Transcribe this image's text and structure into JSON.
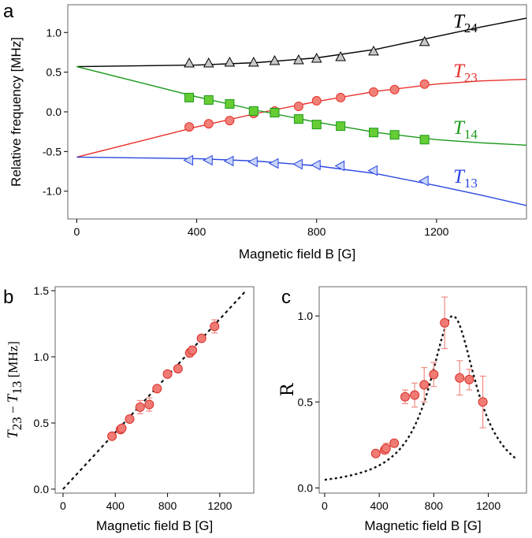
{
  "chart_data": [
    {
      "panel": "a",
      "type": "line",
      "xlabel": "Magnetic field B [G]",
      "ylabel": "Relative frequency [MHz]",
      "xlim": [
        -30,
        1500
      ],
      "ylim": [
        -1.35,
        1.35
      ],
      "xticks": [
        "0",
        "400",
        "800",
        "1200"
      ],
      "yticks": [
        "1.0",
        "0.5",
        "0.0",
        "-0.5",
        "-1.0"
      ],
      "series": [
        {
          "name": "T24",
          "label_main": "T",
          "label_sub": "24",
          "color": "#000000",
          "marker": "triangle-up",
          "marker_fill": "#c8c8c8",
          "line": [
            [
              0,
              0.57
            ],
            [
              200,
              0.58
            ],
            [
              400,
              0.59
            ],
            [
              600,
              0.62
            ],
            [
              800,
              0.68
            ],
            [
              1000,
              0.79
            ],
            [
              1200,
              0.95
            ],
            [
              1350,
              1.07
            ],
            [
              1500,
              1.18
            ]
          ],
          "points": [
            [
              375,
              0.61
            ],
            [
              440,
              0.61
            ],
            [
              510,
              0.62
            ],
            [
              590,
              0.62
            ],
            [
              660,
              0.64
            ],
            [
              740,
              0.65
            ],
            [
              800,
              0.67
            ],
            [
              880,
              0.69
            ],
            [
              990,
              0.76
            ],
            [
              1160,
              0.88
            ]
          ]
        },
        {
          "name": "T23",
          "label_main": "T",
          "label_sub": "23",
          "color": "#e8312b",
          "marker": "circle",
          "marker_fill": "#f08078",
          "line": [
            [
              0,
              -0.57
            ],
            [
              200,
              -0.38
            ],
            [
              400,
              -0.19
            ],
            [
              600,
              -0.02
            ],
            [
              800,
              0.13
            ],
            [
              1000,
              0.26
            ],
            [
              1200,
              0.35
            ],
            [
              1350,
              0.39
            ],
            [
              1500,
              0.41
            ]
          ],
          "points": [
            [
              375,
              -0.19
            ],
            [
              440,
              -0.15
            ],
            [
              510,
              -0.11
            ],
            [
              590,
              -0.02
            ],
            [
              660,
              0.01
            ],
            [
              740,
              0.07
            ],
            [
              800,
              0.14
            ],
            [
              880,
              0.18
            ],
            [
              990,
              0.25
            ],
            [
              1060,
              0.28
            ],
            [
              1160,
              0.35
            ]
          ]
        },
        {
          "name": "T14",
          "label_main": "T",
          "label_sub": "14",
          "color": "#1a9a1a",
          "marker": "square",
          "marker_fill": "#66cc33",
          "line": [
            [
              0,
              0.57
            ],
            [
              200,
              0.38
            ],
            [
              400,
              0.19
            ],
            [
              600,
              0.02
            ],
            [
              800,
              -0.13
            ],
            [
              1000,
              -0.26
            ],
            [
              1200,
              -0.35
            ],
            [
              1350,
              -0.39
            ],
            [
              1500,
              -0.42
            ]
          ],
          "points": [
            [
              375,
              0.18
            ],
            [
              440,
              0.15
            ],
            [
              510,
              0.1
            ],
            [
              590,
              0.01
            ],
            [
              660,
              -0.01
            ],
            [
              740,
              -0.09
            ],
            [
              800,
              -0.16
            ],
            [
              880,
              -0.18
            ],
            [
              990,
              -0.26
            ],
            [
              1060,
              -0.29
            ],
            [
              1160,
              -0.35
            ]
          ]
        },
        {
          "name": "T13",
          "label_main": "T",
          "label_sub": "13",
          "color": "#2b47e0",
          "marker": "triangle-left",
          "marker_fill": "#c8d4f8",
          "line": [
            [
              0,
              -0.57
            ],
            [
              200,
              -0.58
            ],
            [
              400,
              -0.59
            ],
            [
              600,
              -0.62
            ],
            [
              800,
              -0.68
            ],
            [
              1000,
              -0.78
            ],
            [
              1200,
              -0.93
            ],
            [
              1350,
              -1.05
            ],
            [
              1500,
              -1.18
            ]
          ],
          "points": [
            [
              375,
              -0.61
            ],
            [
              440,
              -0.61
            ],
            [
              510,
              -0.62
            ],
            [
              590,
              -0.63
            ],
            [
              660,
              -0.65
            ],
            [
              740,
              -0.66
            ],
            [
              800,
              -0.67
            ],
            [
              880,
              -0.68
            ],
            [
              990,
              -0.74
            ],
            [
              1160,
              -0.87
            ]
          ]
        }
      ]
    },
    {
      "panel": "b",
      "type": "scatter",
      "xlabel": "Magnetic field B [G]",
      "ylabel_main": "T",
      "ylabel_sub1": "23",
      "ylabel_mid": " − ",
      "ylabel_sub2": "13",
      "ylabel_unit": " [MHz]",
      "xlim": [
        -60,
        1460
      ],
      "ylim": [
        -0.03,
        1.53
      ],
      "xticks": [
        "0",
        "400",
        "800",
        "1200"
      ],
      "yticks": [
        "0.0",
        "0.5",
        "1.0",
        "1.5"
      ],
      "fit": [
        [
          0,
          0.0
        ],
        [
          1400,
          1.5
        ]
      ],
      "points": [
        [
          375,
          0.4,
          0.02
        ],
        [
          440,
          0.45,
          0.02
        ],
        [
          450,
          0.46,
          0.02
        ],
        [
          510,
          0.53,
          0.02
        ],
        [
          590,
          0.62,
          0.05
        ],
        [
          660,
          0.64,
          0.05
        ],
        [
          720,
          0.76,
          0.02
        ],
        [
          800,
          0.87,
          0.02
        ],
        [
          880,
          0.91,
          0.02
        ],
        [
          970,
          1.03,
          0.03
        ],
        [
          990,
          1.05,
          0.03
        ],
        [
          1060,
          1.14,
          0.02
        ],
        [
          1160,
          1.23,
          0.05
        ]
      ]
    },
    {
      "panel": "c",
      "type": "scatter",
      "xlabel": "Magnetic field B [G]",
      "ylabel": "R",
      "xlim": [
        -40,
        1480
      ],
      "ylim": [
        -0.03,
        1.17
      ],
      "xticks": [
        "0",
        "400",
        "800",
        "1200"
      ],
      "yticks": [
        "0.0",
        "0.5",
        "1.0"
      ],
      "fit_model": "lorentzian",
      "fit_center": 940,
      "fit_halfwidth": 210,
      "points": [
        [
          375,
          0.2,
          0.01
        ],
        [
          440,
          0.22,
          0.02
        ],
        [
          450,
          0.23,
          0.03
        ],
        [
          510,
          0.26,
          0.02
        ],
        [
          590,
          0.53,
          0.04
        ],
        [
          660,
          0.54,
          0.07
        ],
        [
          730,
          0.6,
          0.1
        ],
        [
          800,
          0.66,
          0.07
        ],
        [
          880,
          0.96,
          0.15
        ],
        [
          990,
          0.64,
          0.1
        ],
        [
          1060,
          0.63,
          0.06
        ],
        [
          1160,
          0.5,
          0.15
        ]
      ]
    }
  ],
  "panel_labels": {
    "a": "a",
    "b": "b",
    "c": "c"
  }
}
